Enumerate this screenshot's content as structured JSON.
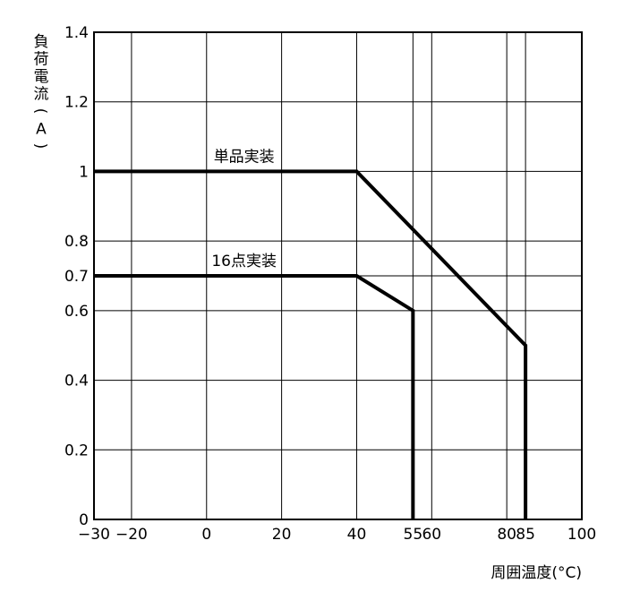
{
  "chart_data": {
    "type": "line",
    "xlabel": "周囲温度(°C)",
    "ylabel_chars": [
      "負",
      "荷",
      "電",
      "流",
      "(",
      "A",
      ")"
    ],
    "xlim": [
      -30,
      100
    ],
    "ylim": [
      0,
      1.4
    ],
    "x_ticks": [
      -30,
      -20,
      0,
      20,
      40,
      55,
      60,
      80,
      85,
      100
    ],
    "y_ticks": [
      0,
      0.2,
      0.4,
      0.6,
      0.7,
      0.8,
      1,
      1.2,
      1.4
    ],
    "grid": true,
    "series": [
      {
        "name": "単品実装",
        "x": [
          -30,
          40,
          85,
          85
        ],
        "y": [
          1,
          1,
          0.5,
          0
        ]
      },
      {
        "name": "16点実装",
        "x": [
          -30,
          40,
          55,
          55
        ],
        "y": [
          0.7,
          0.7,
          0.6,
          0
        ]
      }
    ]
  }
}
